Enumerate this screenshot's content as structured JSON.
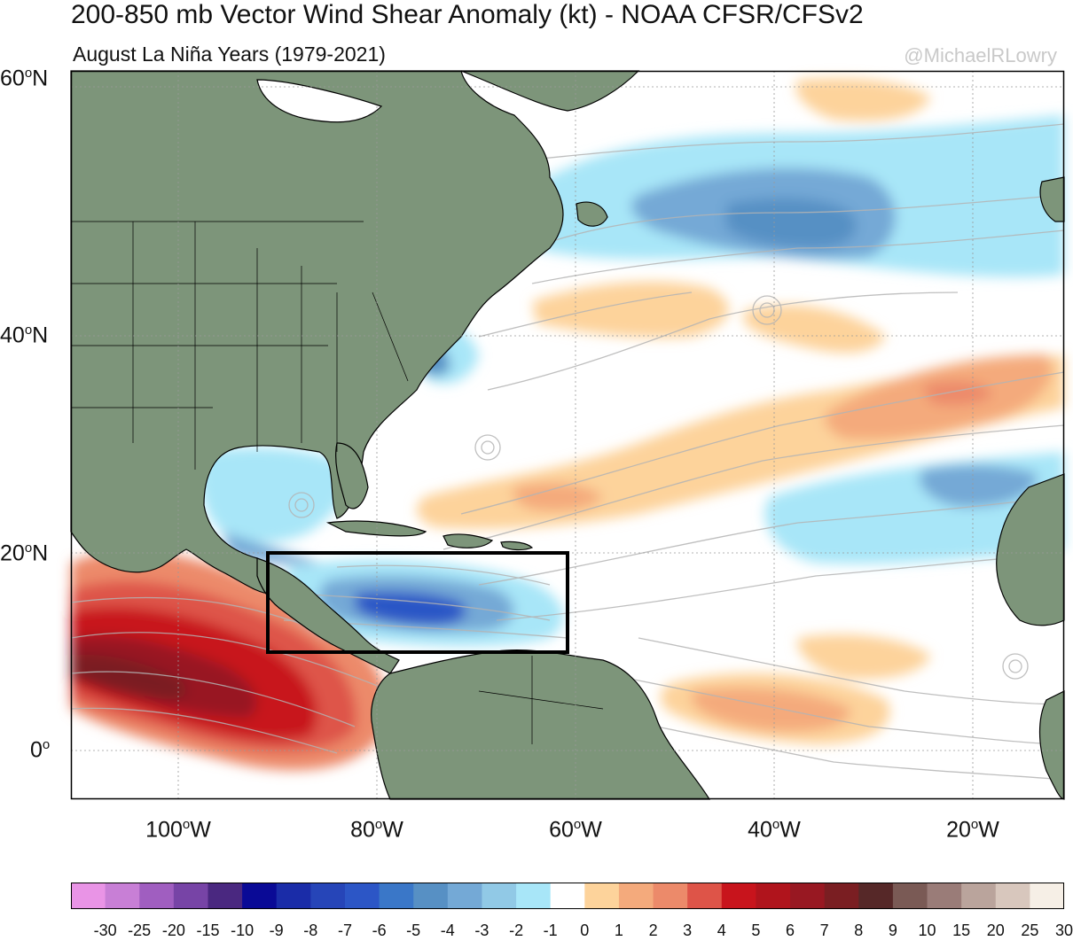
{
  "header": {
    "title": "200-850 mb Vector Wind Shear Anomaly (kt) - NOAA CFSR/CFSv2",
    "subtitle": "August La Niña Years (1979-2021)",
    "credit": "@MichaelRLowry"
  },
  "map": {
    "lat_labels": [
      {
        "deg": "60",
        "hemi": "N"
      },
      {
        "deg": "40",
        "hemi": "N"
      },
      {
        "deg": "20",
        "hemi": "N"
      },
      {
        "deg": "0",
        "hemi": ""
      }
    ],
    "lon_labels": [
      {
        "deg": "100",
        "hemi": "W"
      },
      {
        "deg": "80",
        "hemi": "W"
      },
      {
        "deg": "60",
        "hemi": "W"
      },
      {
        "deg": "40",
        "hemi": "W"
      },
      {
        "deg": "20",
        "hemi": "W"
      }
    ],
    "lat_range": [
      -5,
      60
    ],
    "lon_range": [
      -110,
      -10
    ],
    "highlight_box": {
      "lon": [
        -90,
        -60
      ],
      "lat": [
        10,
        20
      ]
    },
    "colors": {
      "land": "#7d957a",
      "ocean": "#ffffff",
      "streamlines": "#b4b4b4",
      "box": "#000000"
    }
  },
  "colorbar": {
    "labels": [
      "-30",
      "-25",
      "-20",
      "-15",
      "-10",
      "-9",
      "-8",
      "-7",
      "-6",
      "-5",
      "-4",
      "-3",
      "-2",
      "-1",
      "0",
      "1",
      "2",
      "3",
      "4",
      "5",
      "6",
      "7",
      "8",
      "9",
      "10",
      "15",
      "20",
      "25",
      "30"
    ],
    "colors": [
      "#e994e6",
      "#c87fd6",
      "#a05ec0",
      "#7744a6",
      "#4a2880",
      "#0a0a96",
      "#1a2ca8",
      "#2645b8",
      "#2c56c6",
      "#3a77c8",
      "#5790c4",
      "#74a9d6",
      "#91c9e6",
      "#a8e6f8",
      "#ffffff",
      "#fdd39b",
      "#f4aa7c",
      "#ec8a6a",
      "#de5448",
      "#c8141c",
      "#b0141c",
      "#981822",
      "#7a1e22",
      "#562828",
      "#7a5a55",
      "#9a7c78",
      "#baa49c",
      "#d8c7bd",
      "#f6efe6"
    ]
  }
}
